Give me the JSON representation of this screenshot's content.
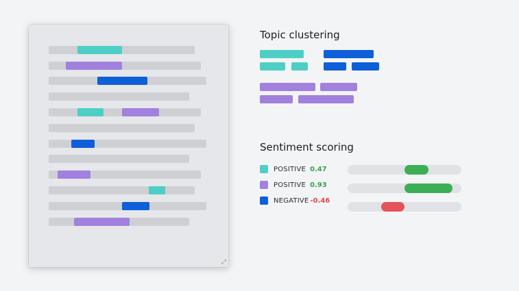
{
  "colors": {
    "teal": "#4ecfc5",
    "purple": "#a280de",
    "blue": "#0e5fd8",
    "positive_text": "#3aa052",
    "negative_text": "#e0474c",
    "bar_positive": "#3cae55",
    "bar_negative": "#e4535a",
    "line_gray": "#cfd0d4"
  },
  "topic_clustering": {
    "title": "Topic clustering"
  },
  "sentiment_scoring": {
    "title": "Sentiment scoring",
    "items": [
      {
        "color": "teal",
        "label": "POSITIVE",
        "score": "0.47",
        "score_value": 0.47
      },
      {
        "color": "purple",
        "label": "POSITIVE",
        "score": "0.93",
        "score_value": 0.93
      },
      {
        "color": "blue",
        "label": "NEGATIVE",
        "score": "-0.46",
        "score_value": -0.46
      }
    ]
  }
}
